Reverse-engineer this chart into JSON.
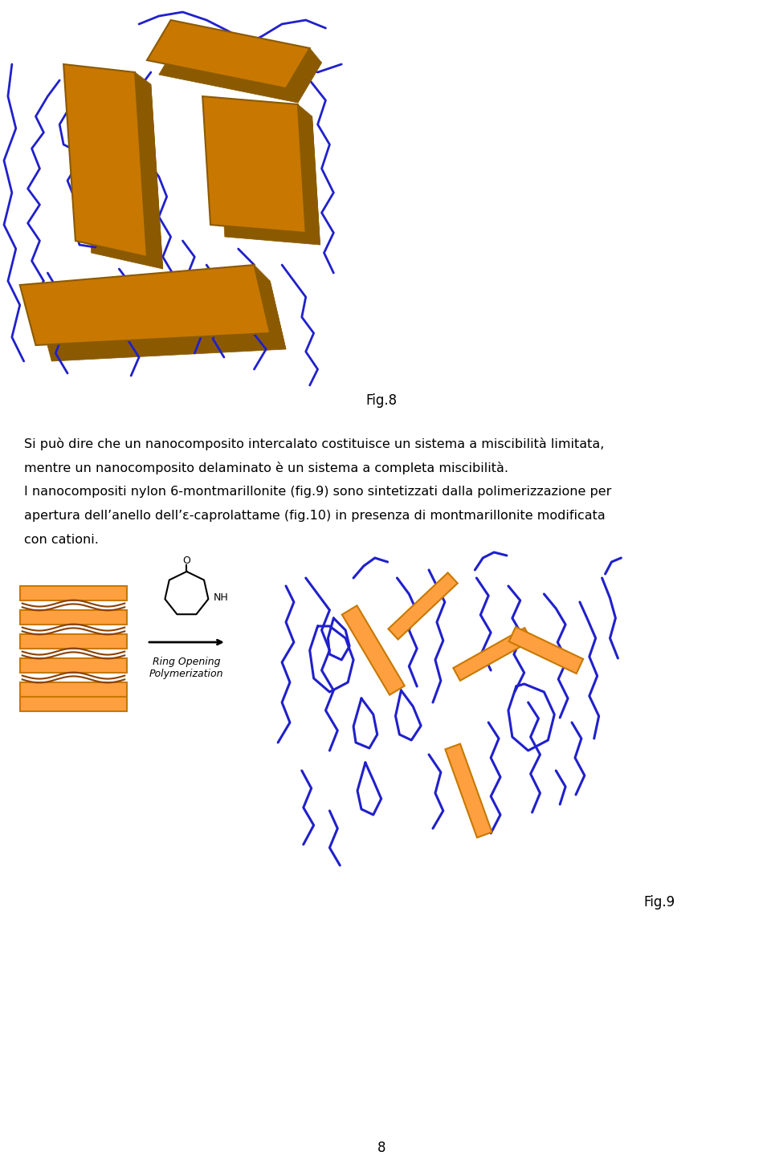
{
  "fig8_label": "Fig.8",
  "fig9_label": "Fig.9",
  "page_number": "8",
  "text_line1": "Si può dire che un nanocomposito intercalato costituisce un sistema a miscibilità limitata,",
  "text_line2": "mentre un nanocomposito delaminato è un sistema a completa miscibilità.",
  "text_line3": "I nanocompositi nylon 6-montmarillonite (fig.9) sono sintetizzati dalla polimerizzazione per",
  "text_line4": "apertura dell’anello dell’ε-caprolattame (fig.10) in presenza di montmarillonite modificata",
  "text_line5": "con cationi.",
  "ring_opening_label": "Ring Opening\nPolymerization",
  "clay_color": "#C87800",
  "clay_color_dark": "#8B5A00",
  "clay_color_light": "#E09020",
  "polymer_color": "#2020CC",
  "bg_color": "#ffffff",
  "text_color": "#000000",
  "font_size_text": 11.5,
  "font_size_label": 12
}
